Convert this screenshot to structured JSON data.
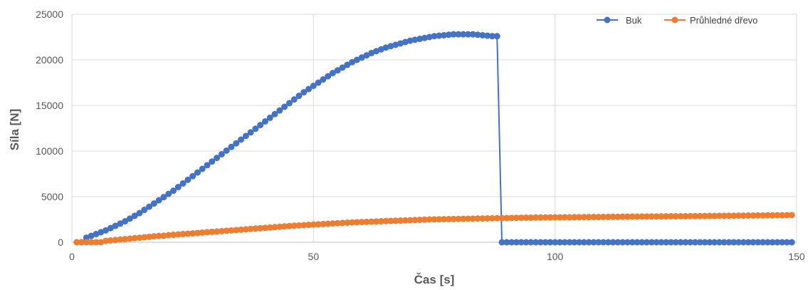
{
  "chart_data": {
    "type": "line",
    "xlabel": "Čas [s]",
    "ylabel": "Síla  [N]",
    "xlim": [
      0,
      150
    ],
    "ylim": [
      0,
      25000
    ],
    "x_ticks": [
      0,
      50,
      100,
      150
    ],
    "y_ticks": [
      0,
      5000,
      10000,
      15000,
      20000,
      25000
    ],
    "x_tick_labels": [
      "0",
      "50",
      "100",
      "150"
    ],
    "y_tick_labels": [
      "0",
      "5000",
      "10000",
      "15000",
      "20000",
      "25000"
    ],
    "grid": true,
    "legend_position": "top-right",
    "series": [
      {
        "name": "Buk",
        "color": "#4472C4",
        "x": [
          1,
          2,
          3,
          4,
          5,
          6,
          7,
          8,
          9,
          10,
          11,
          12,
          13,
          14,
          15,
          16,
          17,
          18,
          19,
          20,
          21,
          22,
          23,
          24,
          25,
          26,
          27,
          28,
          29,
          30,
          31,
          32,
          33,
          34,
          35,
          36,
          37,
          38,
          39,
          40,
          41,
          42,
          43,
          44,
          45,
          46,
          47,
          48,
          49,
          50,
          51,
          52,
          53,
          54,
          55,
          56,
          57,
          58,
          59,
          60,
          61,
          62,
          63,
          64,
          65,
          66,
          67,
          68,
          69,
          70,
          71,
          72,
          73,
          74,
          75,
          76,
          77,
          78,
          79,
          80,
          81,
          82,
          83,
          84,
          85,
          86,
          87,
          88,
          89,
          90,
          91,
          92,
          93,
          94,
          95,
          96,
          97,
          98,
          99,
          100,
          101,
          102,
          103,
          104,
          105,
          106,
          107,
          108,
          109,
          110,
          111,
          112,
          113,
          114,
          115,
          116,
          117,
          118,
          119,
          120,
          121,
          122,
          123,
          124,
          125,
          126,
          127,
          128,
          129,
          130,
          131,
          132,
          133,
          134,
          135,
          136,
          137,
          138,
          139,
          140,
          141,
          142,
          143,
          144,
          145,
          146,
          147,
          148,
          149
        ],
        "y": [
          0,
          0,
          500,
          700,
          900,
          1100,
          1300,
          1550,
          1800,
          2050,
          2300,
          2600,
          2900,
          3200,
          3550,
          3900,
          4250,
          4600,
          4950,
          5300,
          5650,
          6050,
          6450,
          6850,
          7250,
          7650,
          8050,
          8450,
          8850,
          9250,
          9650,
          10050,
          10450,
          10850,
          11250,
          11650,
          12050,
          12450,
          12850,
          13250,
          13650,
          14050,
          14450,
          14850,
          15250,
          15650,
          16050,
          16450,
          16800,
          17150,
          17500,
          17850,
          18200,
          18550,
          18850,
          19150,
          19450,
          19750,
          20000,
          20250,
          20500,
          20750,
          20950,
          21150,
          21350,
          21500,
          21650,
          21800,
          21950,
          22100,
          22200,
          22300,
          22400,
          22500,
          22600,
          22650,
          22700,
          22750,
          22800,
          22800,
          22800,
          22800,
          22800,
          22750,
          22700,
          22650,
          22600,
          22600,
          0,
          0,
          0,
          0,
          0,
          0,
          0,
          0,
          0,
          0,
          0,
          0,
          0,
          0,
          0,
          0,
          0,
          0,
          0,
          0,
          0,
          0,
          0,
          0,
          0,
          0,
          0,
          0,
          0,
          0,
          0,
          0,
          0,
          0,
          0,
          0,
          0,
          0,
          0,
          0,
          0,
          0,
          0,
          0,
          0,
          0,
          0,
          0,
          0,
          0,
          0,
          0,
          0,
          0,
          0,
          0,
          0,
          0,
          0,
          0,
          0
        ]
      },
      {
        "name": "Průhledné dřevo",
        "color": "#ED7D31",
        "x": [
          1,
          2,
          3,
          4,
          5,
          6,
          7,
          8,
          9,
          10,
          11,
          12,
          13,
          14,
          15,
          16,
          17,
          18,
          19,
          20,
          21,
          22,
          23,
          24,
          25,
          26,
          27,
          28,
          29,
          30,
          31,
          32,
          33,
          34,
          35,
          36,
          37,
          38,
          39,
          40,
          41,
          42,
          43,
          44,
          45,
          46,
          47,
          48,
          49,
          50,
          51,
          52,
          53,
          54,
          55,
          56,
          57,
          58,
          59,
          60,
          61,
          62,
          63,
          64,
          65,
          66,
          67,
          68,
          69,
          70,
          71,
          72,
          73,
          74,
          75,
          76,
          77,
          78,
          79,
          80,
          81,
          82,
          83,
          84,
          85,
          86,
          87,
          88,
          89,
          90,
          91,
          92,
          93,
          94,
          95,
          96,
          97,
          98,
          99,
          100,
          101,
          102,
          103,
          104,
          105,
          106,
          107,
          108,
          109,
          110,
          111,
          112,
          113,
          114,
          115,
          116,
          117,
          118,
          119,
          120,
          121,
          122,
          123,
          124,
          125,
          126,
          127,
          128,
          129,
          130,
          131,
          132,
          133,
          134,
          135,
          136,
          137,
          138,
          139,
          140,
          141,
          142,
          143,
          144,
          145,
          146,
          147,
          148,
          149
        ],
        "y": [
          0,
          0,
          0,
          0,
          0,
          0,
          150,
          200,
          250,
          300,
          350,
          400,
          450,
          500,
          550,
          600,
          650,
          700,
          720,
          780,
          820,
          860,
          900,
          940,
          980,
          1020,
          1060,
          1100,
          1140,
          1180,
          1220,
          1260,
          1300,
          1340,
          1380,
          1420,
          1460,
          1500,
          1540,
          1580,
          1620,
          1660,
          1700,
          1740,
          1780,
          1820,
          1850,
          1880,
          1910,
          1940,
          1970,
          2000,
          2030,
          2060,
          2090,
          2120,
          2150,
          2180,
          2200,
          2220,
          2240,
          2260,
          2280,
          2300,
          2320,
          2340,
          2360,
          2380,
          2400,
          2420,
          2440,
          2460,
          2480,
          2500,
          2510,
          2520,
          2530,
          2540,
          2550,
          2560,
          2570,
          2580,
          2590,
          2600,
          2610,
          2620,
          2630,
          2640,
          2650,
          2660,
          2670,
          2680,
          2690,
          2700,
          2700,
          2710,
          2710,
          2720,
          2720,
          2730,
          2730,
          2740,
          2740,
          2750,
          2750,
          2760,
          2760,
          2770,
          2770,
          2780,
          2780,
          2790,
          2790,
          2800,
          2800,
          2810,
          2810,
          2820,
          2820,
          2830,
          2830,
          2840,
          2840,
          2850,
          2850,
          2860,
          2860,
          2870,
          2870,
          2880,
          2880,
          2890,
          2890,
          2900,
          2900,
          2910,
          2910,
          2920,
          2920,
          2930,
          2930,
          2940,
          2940,
          2950,
          2950,
          2960,
          2960,
          2970,
          2980
        ]
      }
    ]
  }
}
